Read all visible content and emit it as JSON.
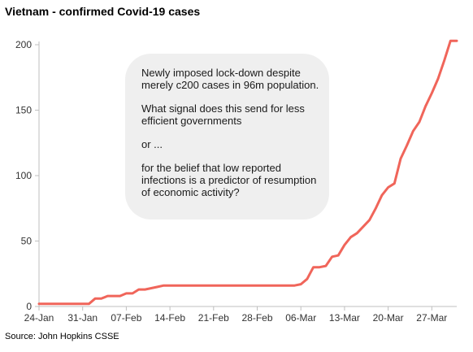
{
  "chart_data": {
    "type": "line",
    "title": "Vietnam - confirmed Covid-19 cases",
    "source": "Source: John Hopkins CSSE",
    "xlabel": "",
    "ylabel": "",
    "ylim": [
      0,
      200
    ],
    "yticks": [
      "0",
      "50",
      "100",
      "150",
      "200"
    ],
    "xticks": [
      "24-Jan",
      "31-Jan",
      "07-Feb",
      "14-Feb",
      "21-Feb",
      "28-Feb",
      "06-Mar",
      "13-Mar",
      "20-Mar",
      "27-Mar"
    ],
    "grid": false,
    "line_color": "#f0655a",
    "dates": [
      "24-Jan",
      "25-Jan",
      "26-Jan",
      "27-Jan",
      "28-Jan",
      "29-Jan",
      "30-Jan",
      "31-Jan",
      "01-Feb",
      "02-Feb",
      "03-Feb",
      "04-Feb",
      "05-Feb",
      "06-Feb",
      "07-Feb",
      "08-Feb",
      "09-Feb",
      "10-Feb",
      "11-Feb",
      "12-Feb",
      "13-Feb",
      "14-Feb",
      "15-Feb",
      "16-Feb",
      "17-Feb",
      "18-Feb",
      "19-Feb",
      "20-Feb",
      "21-Feb",
      "22-Feb",
      "23-Feb",
      "24-Feb",
      "25-Feb",
      "26-Feb",
      "27-Feb",
      "28-Feb",
      "29-Feb",
      "01-Mar",
      "02-Mar",
      "03-Mar",
      "04-Mar",
      "05-Mar",
      "06-Mar",
      "07-Mar",
      "08-Mar",
      "09-Mar",
      "10-Mar",
      "11-Mar",
      "12-Mar",
      "13-Mar",
      "14-Mar",
      "15-Mar",
      "16-Mar",
      "17-Mar",
      "18-Mar",
      "19-Mar",
      "20-Mar",
      "21-Mar",
      "22-Mar",
      "23-Mar",
      "24-Mar",
      "25-Mar",
      "26-Mar",
      "27-Mar",
      "28-Mar",
      "29-Mar",
      "30-Mar",
      "31-Mar"
    ],
    "values": [
      2,
      2,
      2,
      2,
      2,
      2,
      2,
      2,
      2,
      6,
      6,
      8,
      8,
      8,
      10,
      10,
      13,
      13,
      14,
      15,
      16,
      16,
      16,
      16,
      16,
      16,
      16,
      16,
      16,
      16,
      16,
      16,
      16,
      16,
      16,
      16,
      16,
      16,
      16,
      16,
      16,
      16,
      17,
      21,
      30,
      30,
      31,
      38,
      39,
      47,
      53,
      56,
      61,
      66,
      75,
      85,
      91,
      94,
      113,
      123,
      134,
      141,
      153,
      163,
      174,
      188,
      203,
      203
    ]
  },
  "annotation": {
    "lines": [
      "Newly imposed lock-down despite merely c200 cases in 96m population.",
      "What signal does this send for less efficient governments",
      "or ...",
      "for the belief that low reported infections is a predictor of resumption of economic activity?"
    ]
  }
}
